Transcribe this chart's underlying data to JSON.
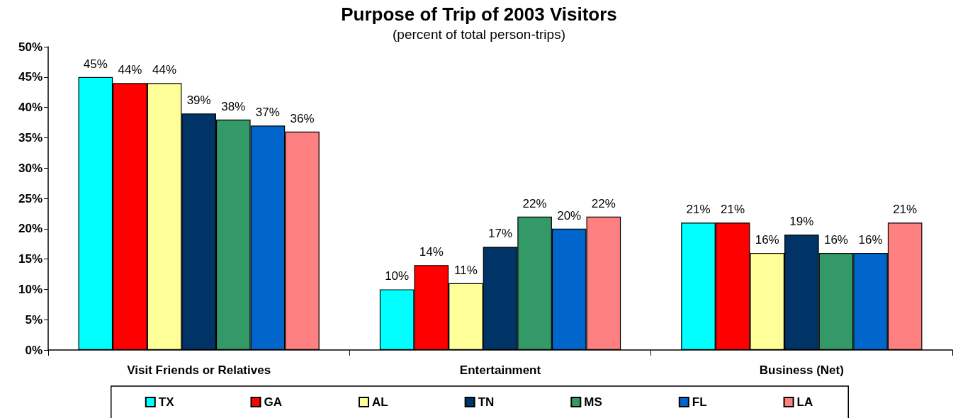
{
  "chart_data": {
    "type": "bar",
    "title": "Purpose of Trip of 2003 Visitors",
    "subtitle": "(percent of total person-trips)",
    "categories": [
      "Visit Friends or Relatives",
      "Entertainment",
      "Business (Net)"
    ],
    "series": [
      {
        "name": "TX",
        "color": "#00ffff",
        "values": [
          45,
          10,
          21
        ],
        "value_labels": [
          "45%",
          "10%",
          "21%"
        ]
      },
      {
        "name": "GA",
        "color": "#ff0000",
        "values": [
          44,
          14,
          21
        ],
        "value_labels": [
          "44%",
          "14%",
          "21%"
        ]
      },
      {
        "name": "AL",
        "color": "#ffff99",
        "values": [
          44,
          11,
          16
        ],
        "value_labels": [
          "44%",
          "11%",
          "16%"
        ]
      },
      {
        "name": "TN",
        "color": "#003366",
        "values": [
          39,
          17,
          19
        ],
        "value_labels": [
          "39%",
          "17%",
          "19%"
        ]
      },
      {
        "name": "MS",
        "color": "#339966",
        "values": [
          38,
          22,
          16
        ],
        "value_labels": [
          "38%",
          "22%",
          "16%"
        ]
      },
      {
        "name": "FL",
        "color": "#0066cc",
        "values": [
          37,
          20,
          16
        ],
        "value_labels": [
          "37%",
          "20%",
          "16%"
        ]
      },
      {
        "name": "LA",
        "color": "#ff8080",
        "values": [
          36,
          22,
          21
        ],
        "value_labels": [
          "36%",
          "22%",
          "21%"
        ]
      }
    ],
    "ylim": [
      0,
      50
    ],
    "yticks": [
      {
        "value": 0,
        "label": "0%"
      },
      {
        "value": 5,
        "label": "5%"
      },
      {
        "value": 10,
        "label": "10%"
      },
      {
        "value": 15,
        "label": "15%"
      },
      {
        "value": 20,
        "label": "20%"
      },
      {
        "value": 25,
        "label": "25%"
      },
      {
        "value": 30,
        "label": "30%"
      },
      {
        "value": 35,
        "label": "35%"
      },
      {
        "value": 40,
        "label": "40%"
      },
      {
        "value": 45,
        "label": "45%"
      },
      {
        "value": 50,
        "label": "50%"
      }
    ],
    "grid": false,
    "legend": "bottom"
  }
}
